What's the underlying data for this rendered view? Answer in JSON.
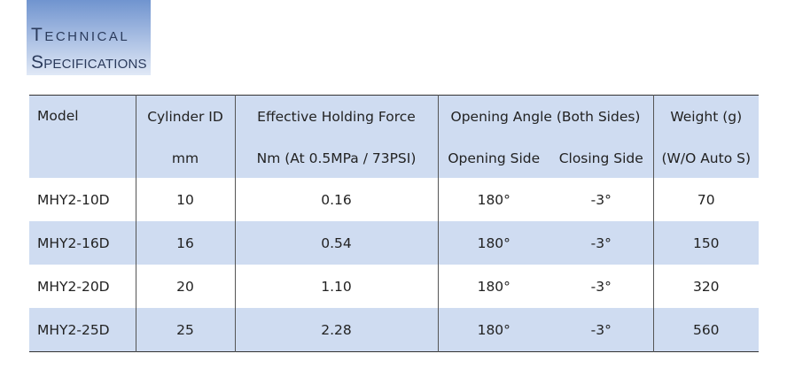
{
  "header": {
    "title_line1": "TECHNICAL",
    "title_line2": "SPECIFICATIONS"
  },
  "table": {
    "header_rows": [
      [
        "Model",
        "Cylinder ID",
        "Effective Holding Force",
        "Opening Angle (Both Sides)",
        "Weight  (g)"
      ],
      [
        "mm",
        "Nm (At 0.5MPa / 73PSI)",
        "Opening Side",
        "Closing Side",
        "(W/O Auto S)"
      ]
    ],
    "rows": [
      [
        "MHY2-10D",
        "10",
        "0.16",
        "180°",
        "-3°",
        "70"
      ],
      [
        "MHY2-16D",
        "16",
        "0.54",
        "180°",
        "-3°",
        "150"
      ],
      [
        "MHY2-20D",
        "20",
        "1.10",
        "180°",
        "-3°",
        "320"
      ],
      [
        "MHY2-25D",
        "25",
        "2.28",
        "180°",
        "-3°",
        "560"
      ]
    ]
  }
}
